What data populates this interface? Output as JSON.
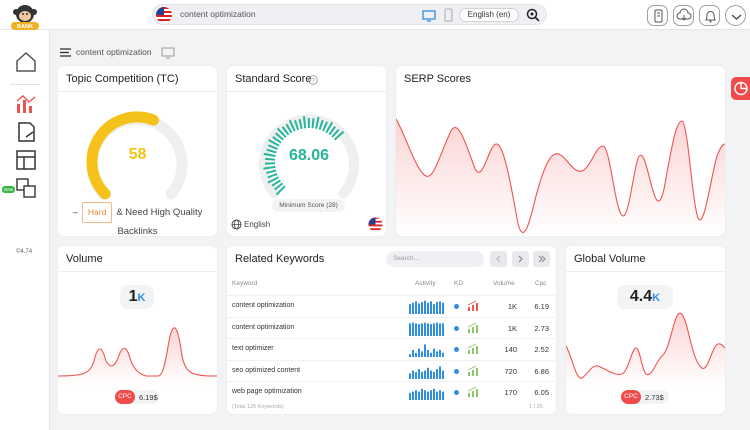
{
  "header": {
    "search_query": "content optimization",
    "language_label": "English (en)",
    "icons": [
      "mobile-reader-icon",
      "cloud-download-icon",
      "bell-icon",
      "chevron-down-icon"
    ]
  },
  "sidebar": {
    "items": [
      "home-icon",
      "bar-chart-icon",
      "document-icon",
      "layout-icon",
      "copy-icon"
    ],
    "new_badge": "New",
    "version": "©4.74"
  },
  "breadcrumb": {
    "text": "content optimization"
  },
  "topic_competition": {
    "title": "Topic Competition (TC)",
    "value": "58",
    "value_fraction": 0.58,
    "dash": "–",
    "difficulty": "Hard",
    "description_line1": "& Need High Quality",
    "description_line2": "Backlinks",
    "color": "#f5c21b"
  },
  "standard_score": {
    "title": "Standard Score",
    "value": "68.06",
    "min_score_label": "Minimum Score (28)",
    "language": "English",
    "color": "#26b59a"
  },
  "serp_scores": {
    "title": "SERP Scores",
    "line_color": "#ef5350"
  },
  "volume": {
    "title": "Volume",
    "value": "1",
    "unit": "K",
    "cpc_label": "CPC",
    "cpc_value": "6.19$"
  },
  "related_keywords": {
    "title": "Related Keywords",
    "search_placeholder": "Search...",
    "columns": {
      "keyword": "Keyword",
      "activity": "Activity",
      "kd": "KD",
      "volume": "Volume",
      "cpc": "Cpc"
    },
    "rows": [
      {
        "keyword": "content optimization",
        "volume": "1K",
        "cpc": "6.19",
        "bars": [
          0.7,
          0.8,
          0.9,
          0.75,
          0.85,
          0.95,
          0.8,
          0.9,
          0.7,
          0.85,
          0.9,
          0.8
        ]
      },
      {
        "keyword": "content optimization",
        "volume": "1K",
        "cpc": "2.73",
        "bars": [
          0.9,
          0.95,
          0.9,
          0.85,
          0.9,
          0.95,
          0.9,
          0.85,
          0.9,
          0.95,
          0.9,
          0.9
        ]
      },
      {
        "keyword": "text optimizer",
        "volume": "140",
        "cpc": "2.52",
        "bars": [
          0.2,
          0.5,
          0.3,
          0.6,
          0.4,
          0.9,
          0.5,
          0.3,
          0.6,
          0.4,
          0.5,
          0.3
        ]
      },
      {
        "keyword": "seo optimized content",
        "volume": "720",
        "cpc": "6.86",
        "bars": [
          0.4,
          0.6,
          0.5,
          0.7,
          0.5,
          0.6,
          0.8,
          0.6,
          0.5,
          0.7,
          0.9,
          0.6
        ]
      },
      {
        "keyword": "web page optimization",
        "volume": "170",
        "cpc": "6.05",
        "bars": [
          0.5,
          0.6,
          0.7,
          0.6,
          0.8,
          0.7,
          0.6,
          0.7,
          0.8,
          0.6,
          0.7,
          0.6
        ]
      }
    ],
    "footer_left": "(Total 126 Keywords)",
    "footer_right": "1 / 26"
  },
  "global_volume": {
    "title": "Global Volume",
    "value": "4.4",
    "unit": "K",
    "cpc_label": "CPC",
    "cpc_value": "2.73$"
  }
}
